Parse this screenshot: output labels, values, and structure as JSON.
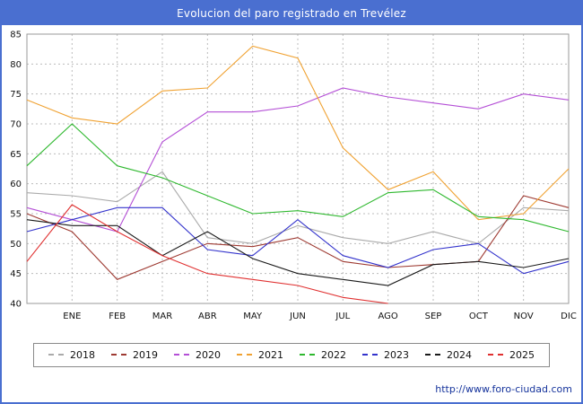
{
  "title": "Evolucion del paro registrado en Trevélez",
  "footer": {
    "url": "http://www.foro-ciudad.com"
  },
  "chart_data": {
    "type": "line",
    "title": "Evolucion del paro registrado en Trevélez",
    "xlabel": "",
    "ylabel": "",
    "ylim": [
      40,
      85
    ],
    "ytick_step": 5,
    "grid": true,
    "legend_position": "bottom",
    "x_labels": [
      "ENE",
      "FEB",
      "MAR",
      "ABR",
      "MAY",
      "JUN",
      "JUL",
      "AGO",
      "SEP",
      "OCT",
      "NOV",
      "DIC"
    ],
    "note": "First value of each series sits at the left axis (previous December); month labels align with the following gridline vertices.",
    "series": [
      {
        "name": "2018",
        "color": "#aaaaaa",
        "values": [
          58.5,
          58,
          57,
          62,
          51,
          50,
          53,
          51,
          50,
          52,
          50,
          56,
          55.5
        ]
      },
      {
        "name": "2019",
        "color": "#9e3a32",
        "values": [
          55,
          52,
          44,
          47,
          50,
          49.5,
          51,
          47,
          46,
          46.5,
          47,
          58,
          56
        ]
      },
      {
        "name": "2020",
        "color": "#b44fd6",
        "values": [
          56,
          54,
          52,
          67,
          72,
          72,
          73,
          76,
          74.5,
          73.5,
          72.5,
          75,
          74
        ]
      },
      {
        "name": "2021",
        "color": "#f0a232",
        "values": [
          74,
          71,
          70,
          75.5,
          76,
          83,
          81,
          66,
          59,
          62,
          54,
          55,
          62.5
        ]
      },
      {
        "name": "2022",
        "color": "#2eb82e",
        "values": [
          63,
          70,
          63,
          61,
          58,
          55,
          55.5,
          54.5,
          58.5,
          59,
          54.5,
          54,
          52
        ]
      },
      {
        "name": "2023",
        "color": "#3333cc",
        "values": [
          52,
          54,
          56,
          56,
          49,
          48,
          54,
          48,
          46,
          49,
          50,
          45,
          47
        ]
      },
      {
        "name": "2024",
        "color": "#1a1a1a",
        "values": [
          54,
          53,
          53,
          48,
          52,
          47.5,
          45,
          44,
          43,
          46.5,
          47,
          46,
          47.5
        ]
      },
      {
        "name": "2025",
        "color": "#e03030",
        "values": [
          47,
          56.5,
          52,
          48,
          45,
          44,
          43,
          41,
          40
        ]
      }
    ]
  }
}
